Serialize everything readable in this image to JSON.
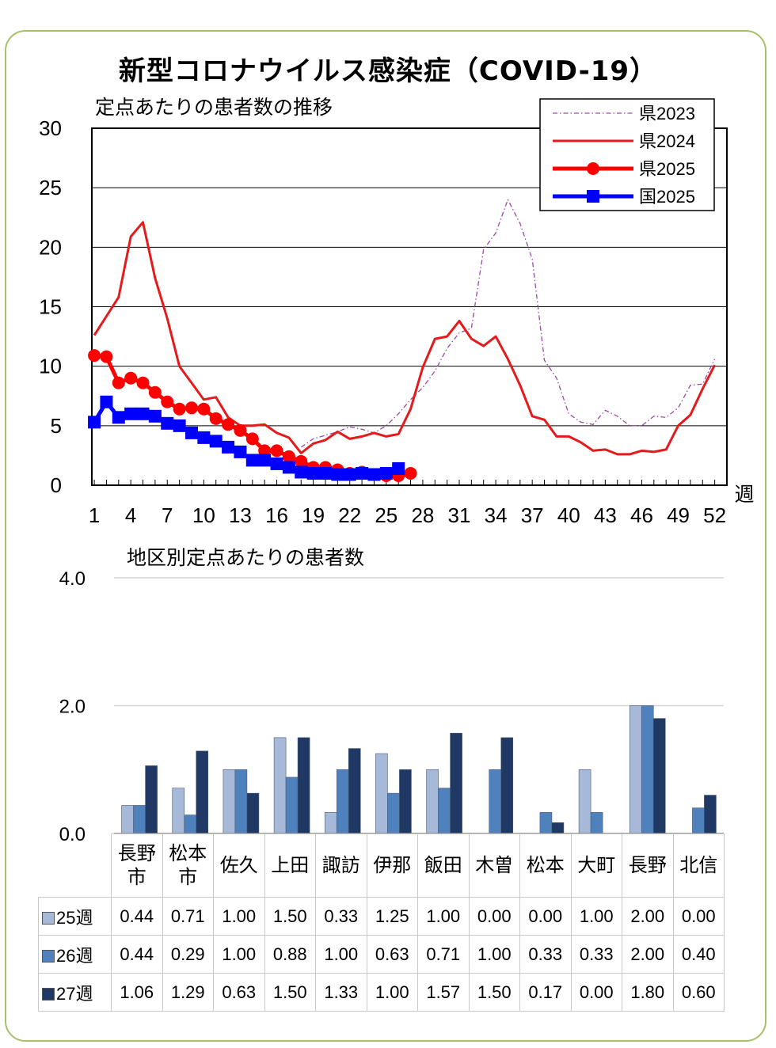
{
  "title": "新型コロナウイルス感染症（COVID-19）",
  "chart_data": [
    {
      "type": "line",
      "subtitle": "定点あたりの患者数の推移",
      "xlabel": "週",
      "ylabel": "",
      "x": [
        1,
        2,
        3,
        4,
        5,
        6,
        7,
        8,
        9,
        10,
        11,
        12,
        13,
        14,
        15,
        16,
        17,
        18,
        19,
        20,
        21,
        22,
        23,
        24,
        25,
        26,
        27,
        28,
        29,
        30,
        31,
        32,
        33,
        34,
        35,
        36,
        37,
        38,
        39,
        40,
        41,
        42,
        43,
        44,
        45,
        46,
        47,
        48,
        49,
        50,
        51,
        52
      ],
      "xticks": [
        1,
        4,
        7,
        10,
        13,
        16,
        19,
        22,
        25,
        28,
        31,
        34,
        37,
        40,
        43,
        46,
        49,
        52
      ],
      "ylim": [
        0,
        30
      ],
      "yticks": [
        0,
        5,
        10,
        15,
        20,
        25,
        30
      ],
      "grid": true,
      "legend_position": "top-right",
      "series": [
        {
          "name": "県2023",
          "color": "#9c4aa6",
          "style": "dashdot",
          "values": [
            null,
            null,
            null,
            null,
            null,
            null,
            null,
            null,
            null,
            null,
            null,
            null,
            null,
            null,
            null,
            null,
            null,
            3.2,
            3.9,
            4.2,
            4.5,
            4.9,
            4.7,
            4.4,
            5.0,
            6.0,
            7.2,
            8.2,
            9.6,
            11.5,
            12.8,
            13.2,
            19.8,
            21.2,
            24.0,
            22.0,
            19.0,
            10.5,
            9.0,
            6.0,
            5.3,
            5.1,
            6.3,
            5.8,
            5.0,
            5.0,
            5.8,
            5.7,
            6.5,
            8.4,
            8.5,
            10.6
          ]
        },
        {
          "name": "県2024",
          "color": "#e41a1c",
          "style": "solid",
          "values": [
            12.6,
            14.2,
            15.8,
            20.9,
            22.1,
            17.4,
            14.0,
            10.0,
            8.6,
            7.2,
            7.4,
            5.7,
            5.0,
            5.0,
            5.1,
            4.4,
            4.0,
            2.7,
            3.5,
            3.8,
            4.5,
            3.9,
            4.1,
            4.4,
            4.1,
            4.3,
            6.4,
            9.9,
            12.3,
            12.5,
            13.8,
            12.3,
            11.7,
            12.5,
            10.6,
            8.4,
            5.8,
            5.5,
            4.1,
            4.1,
            3.6,
            2.9,
            3.0,
            2.6,
            2.6,
            2.9,
            2.8,
            3.0,
            5.0,
            5.9,
            8.1,
            10.1
          ]
        },
        {
          "name": "県2025",
          "color": "#ff0000",
          "style": "marker-circle",
          "values": [
            10.9,
            10.8,
            8.6,
            9.0,
            8.6,
            7.8,
            7.0,
            6.4,
            6.5,
            6.4,
            5.6,
            5.1,
            4.6,
            3.9,
            2.9,
            2.9,
            2.4,
            2.0,
            1.5,
            1.5,
            1.3,
            1.0,
            1.1,
            0.9,
            0.8,
            0.8,
            1.0,
            null,
            null,
            null,
            null,
            null,
            null,
            null,
            null,
            null,
            null,
            null,
            null,
            null,
            null,
            null,
            null,
            null,
            null,
            null,
            null,
            null,
            null,
            null,
            null,
            null
          ]
        },
        {
          "name": "国2025",
          "color": "#0000ff",
          "style": "marker-square",
          "values": [
            5.3,
            7.0,
            5.7,
            6.0,
            6.0,
            5.8,
            5.2,
            5.0,
            4.4,
            4.0,
            3.7,
            3.2,
            2.8,
            2.1,
            2.1,
            1.8,
            1.5,
            1.1,
            1.0,
            1.0,
            0.9,
            0.9,
            1.0,
            0.9,
            1.0,
            1.4,
            null,
            null,
            null,
            null,
            null,
            null,
            null,
            null,
            null,
            null,
            null,
            null,
            null,
            null,
            null,
            null,
            null,
            null,
            null,
            null,
            null,
            null,
            null,
            null,
            null,
            null
          ]
        }
      ]
    },
    {
      "type": "bar",
      "subtitle": "地区別定点あたりの患者数",
      "ylim": [
        0,
        4
      ],
      "yticks": [
        "0.0",
        "2.0",
        "4.0"
      ],
      "categories": [
        {
          "line1": "長野",
          "line2": "市"
        },
        {
          "line1": "松本",
          "line2": "市"
        },
        {
          "line1": "佐久",
          "line2": ""
        },
        {
          "line1": "上田",
          "line2": ""
        },
        {
          "line1": "諏訪",
          "line2": ""
        },
        {
          "line1": "伊那",
          "line2": ""
        },
        {
          "line1": "飯田",
          "line2": ""
        },
        {
          "line1": "木曽",
          "line2": ""
        },
        {
          "line1": "松本",
          "line2": ""
        },
        {
          "line1": "大町",
          "line2": ""
        },
        {
          "line1": "長野",
          "line2": ""
        },
        {
          "line1": "北信",
          "line2": ""
        }
      ],
      "series": [
        {
          "name": "25週",
          "color": "#a7b9d9",
          "values": [
            "0.44",
            "0.71",
            "1.00",
            "1.50",
            "0.33",
            "1.25",
            "1.00",
            "0.00",
            "0.00",
            "1.00",
            "2.00",
            "0.00"
          ]
        },
        {
          "name": "26週",
          "color": "#4f81bd",
          "values": [
            "0.44",
            "0.29",
            "1.00",
            "0.88",
            "1.00",
            "0.63",
            "0.71",
            "1.00",
            "0.33",
            "0.33",
            "2.00",
            "0.40"
          ]
        },
        {
          "name": "27週",
          "color": "#1f3864",
          "values": [
            "1.06",
            "1.29",
            "0.63",
            "1.50",
            "1.33",
            "1.00",
            "1.57",
            "1.50",
            "0.17",
            "0.00",
            "1.80",
            "0.60"
          ]
        }
      ]
    }
  ]
}
